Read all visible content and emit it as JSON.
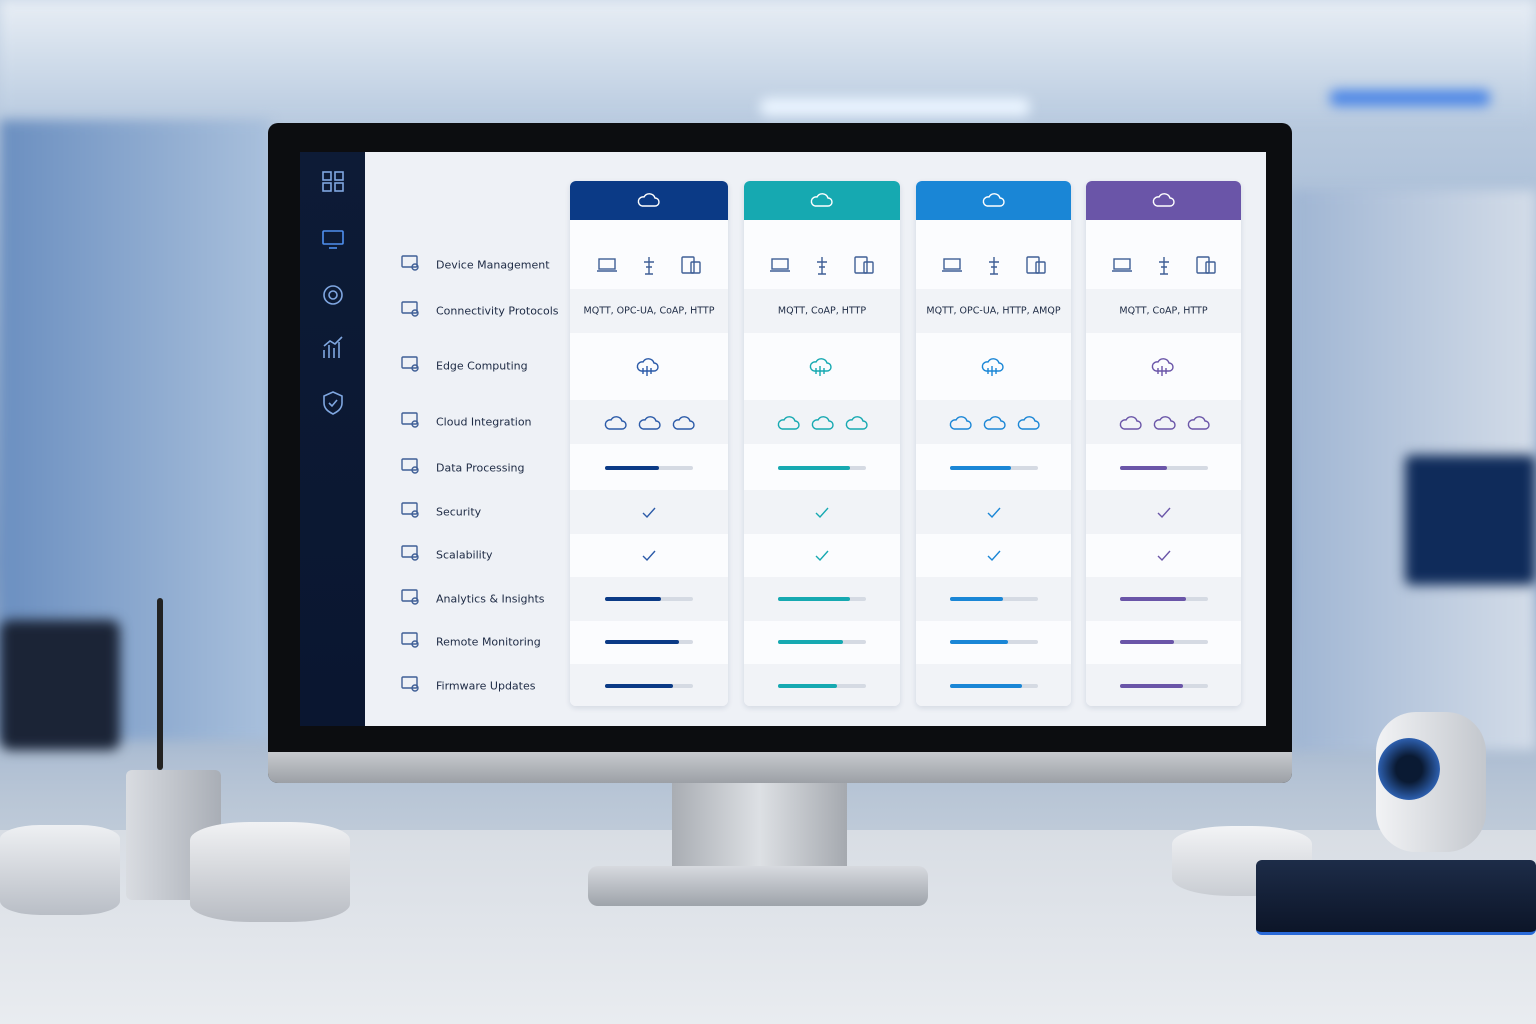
{
  "rows": [
    "Device Management",
    "Connectivity Protocols",
    "Edge Computing",
    "Cloud Integration",
    "Data Processing",
    "Security",
    "Scalability",
    "Analytics & Insights",
    "Remote Monitoring",
    "Firmware Updates"
  ],
  "plans": [
    {
      "color": "#0b3a86",
      "protocols": "MQTT, OPC-UA, CoAP, HTTP",
      "bars": [
        61,
        64,
        84,
        77
      ]
    },
    {
      "color": "#16a9b1",
      "protocols": "MQTT, CoAP, HTTP",
      "bars": [
        82,
        82,
        74,
        67
      ]
    },
    {
      "color": "#1a86d6",
      "protocols": "MQTT, OPC-UA, HTTP, AMQP",
      "bars": [
        70,
        61,
        66,
        82
      ]
    },
    {
      "color": "#6a55a8",
      "protocols": "MQTT, CoAP, HTTP",
      "bars": [
        54,
        76,
        62,
        72
      ]
    }
  ]
}
